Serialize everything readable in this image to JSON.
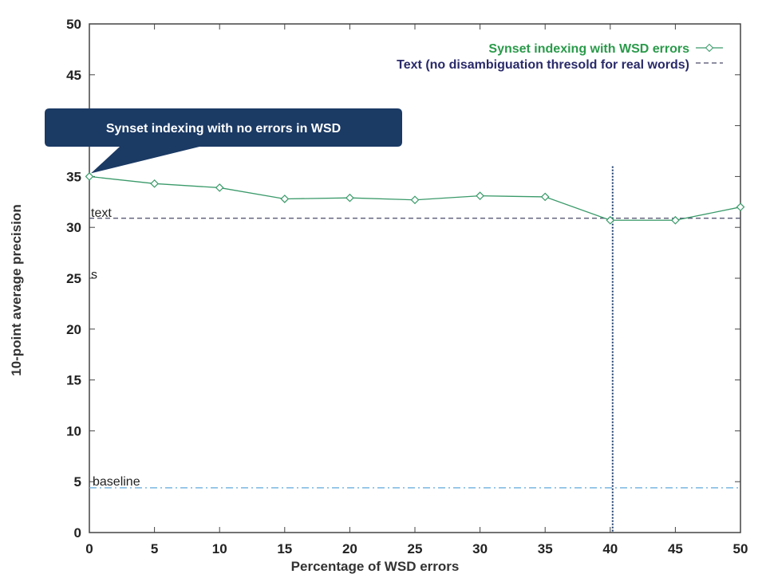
{
  "chart_data": {
    "type": "line",
    "xlabel": "Percentage of WSD errors",
    "ylabel": "10-point average precision",
    "xlim": [
      0,
      50
    ],
    "ylim": [
      0,
      50
    ],
    "x_ticks": [
      "0",
      "5",
      "10",
      "15",
      "20",
      "25",
      "30",
      "35",
      "40",
      "45",
      "50"
    ],
    "y_ticks": [
      "0",
      "5",
      "10",
      "15",
      "20",
      "25",
      "30",
      "35",
      "40",
      "45",
      "50"
    ],
    "legend_position": "top-right",
    "series": [
      {
        "name": "Synset indexing with WSD errors",
        "color": "#3a9a6a",
        "style": "solid",
        "marker": "diamond",
        "x": [
          0,
          5,
          10,
          15,
          20,
          25,
          30,
          35,
          40,
          45,
          50
        ],
        "y": [
          35.0,
          34.3,
          33.9,
          32.8,
          32.9,
          32.7,
          33.1,
          33.0,
          30.7,
          30.7,
          32.0
        ]
      },
      {
        "name": "Text (no disambiguation thresold for real words)",
        "color": "#4a4a6a",
        "style": "dashed",
        "y": 30.9
      }
    ],
    "reference_lines": [
      {
        "label": "baseline",
        "y": 4.4,
        "color": "#7ab8e0",
        "style": "dash-dot"
      }
    ],
    "annotations": [
      {
        "label": "text",
        "y": 31.2
      },
      {
        "label": "s",
        "y": 25.6
      }
    ],
    "vertical_marker": {
      "x": 40,
      "color": "#1a3a6a",
      "style": "dotted"
    },
    "callout": {
      "text": "Synset indexing with no errors in WSD",
      "points_to_x": 0,
      "points_to_y": 35.0,
      "background": "#1b3a64"
    }
  }
}
